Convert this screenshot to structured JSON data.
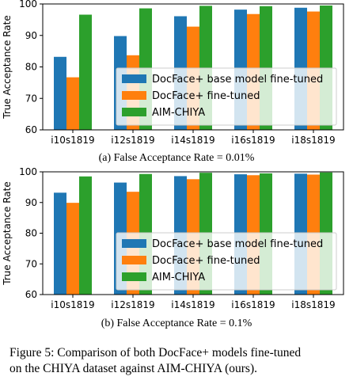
{
  "caption": {
    "line1": "Figure 5: Comparison of both DocFace+ models fine-tuned",
    "line2": "on the CHIYA dataset against AIM-CHIYA (ours)."
  },
  "colors": {
    "series": [
      "#1f77b4",
      "#ff7f0e",
      "#2ca02c"
    ]
  },
  "chart_data": [
    {
      "type": "bar",
      "subcaption": "(a) False Acceptance Rate = 0.01%",
      "ylabel": "True Acceptance Rate",
      "xlabel": "",
      "ylim": [
        60,
        100
      ],
      "yticks": [
        60,
        70,
        80,
        90,
        100
      ],
      "grid": false,
      "legend_position": "lower-right",
      "categories": [
        "i10s1819",
        "i12s1819",
        "i14s1819",
        "i16s1819",
        "i18s1819"
      ],
      "series": [
        {
          "name": "DocFace+ base model fine-tuned",
          "values": [
            83.2,
            89.8,
            96.1,
            98.2,
            98.8
          ]
        },
        {
          "name": "DocFace+ fine-tuned",
          "values": [
            76.7,
            83.7,
            92.8,
            96.8,
            97.6
          ]
        },
        {
          "name": "AIM-CHIYA",
          "values": [
            96.6,
            98.6,
            99.4,
            99.3,
            99.5
          ]
        }
      ]
    },
    {
      "type": "bar",
      "subcaption": "(b) False Acceptance Rate = 0.1%",
      "ylabel": "True Acceptance Rate",
      "xlabel": "",
      "ylim": [
        60,
        100
      ],
      "yticks": [
        60,
        70,
        80,
        90,
        100
      ],
      "grid": false,
      "legend_position": "lower-right",
      "categories": [
        "i10s1819",
        "i12s1819",
        "i14s1819",
        "i16s1819",
        "i18s1819"
      ],
      "series": [
        {
          "name": "DocFace+ base model fine-tuned",
          "values": [
            93.2,
            96.5,
            98.6,
            99.2,
            99.4
          ]
        },
        {
          "name": "DocFace+ fine-tuned",
          "values": [
            89.9,
            93.5,
            97.6,
            98.9,
            99.1
          ]
        },
        {
          "name": "AIM-CHIYA",
          "values": [
            98.5,
            99.3,
            99.7,
            99.5,
            99.8
          ]
        }
      ]
    }
  ]
}
